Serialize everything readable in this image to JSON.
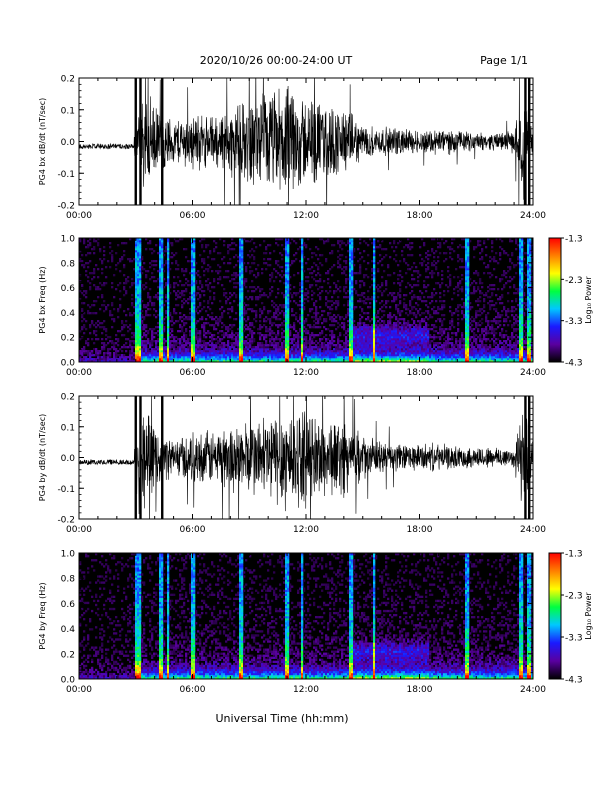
{
  "header": {
    "title": "2020/10/26  00:00-24:00 UT",
    "page": "Page 1/1"
  },
  "footer": {
    "xlabel": "Universal Time (hh:mm)"
  },
  "colorbar": {
    "label": "Log₁₀ Power",
    "ticks": [
      "-1.3",
      "-2.3",
      "-3.3",
      "-4.3"
    ],
    "values": [
      -1.3,
      -2.3,
      -3.3,
      -4.3
    ],
    "range": [
      -4.3,
      -1.3
    ],
    "colormap": [
      "#000000",
      "#5a00a0",
      "#1a1aff",
      "#00c8ff",
      "#00ff40",
      "#ffff00",
      "#ff8000",
      "#ff0000"
    ]
  },
  "chart_data": [
    {
      "type": "line",
      "ylabel": "PG4 bx dB/dt (nT/sec)",
      "xlim": [
        0,
        24
      ],
      "ylim": [
        -0.2,
        0.2
      ],
      "xticks": [
        "00:00",
        "06:00",
        "12:00",
        "18:00",
        "24:00"
      ],
      "yticks": [
        "0.2",
        "0.1",
        "0.0",
        "-0.1",
        "-0.2"
      ],
      "ytick_values": [
        0.2,
        0.1,
        0.0,
        -0.1,
        -0.2
      ],
      "series": [
        {
          "color": "#000000",
          "envelope_hours": [
            0,
            2,
            3,
            3.5,
            4,
            5,
            6,
            7,
            8,
            9,
            10,
            11,
            12,
            13,
            14,
            15,
            16,
            17,
            18,
            19,
            20,
            21,
            22,
            23,
            23.5,
            24
          ],
          "amplitude": [
            0.01,
            0.01,
            0.06,
            0.2,
            0.12,
            0.08,
            0.1,
            0.09,
            0.12,
            0.15,
            0.18,
            0.2,
            0.16,
            0.14,
            0.12,
            0.06,
            0.05,
            0.05,
            0.04,
            0.05,
            0.04,
            0.03,
            0.03,
            0.04,
            0.2,
            0.05
          ]
        }
      ]
    },
    {
      "type": "heatmap",
      "ylabel": "PG4 bx Freq (Hz)",
      "xlim": [
        0,
        24
      ],
      "ylim": [
        0,
        1.0
      ],
      "xticks": [
        "00:00",
        "06:00",
        "12:00",
        "18:00",
        "24:00"
      ],
      "yticks": [
        "1.0",
        "0.8",
        "0.6",
        "0.4",
        "0.2",
        "0.0"
      ],
      "ytick_values": [
        1.0,
        0.8,
        0.6,
        0.4,
        0.2,
        0.0
      ],
      "zlim": [
        -4.3,
        -1.3
      ]
    },
    {
      "type": "line",
      "ylabel": "PG4 by dB/dt (nT/sec)",
      "xlim": [
        0,
        24
      ],
      "ylim": [
        -0.2,
        0.2
      ],
      "xticks": [
        "00:00",
        "06:00",
        "12:00",
        "18:00",
        "24:00"
      ],
      "yticks": [
        "0.2",
        "0.1",
        "0.0",
        "-0.1",
        "-0.2"
      ],
      "ytick_values": [
        0.2,
        0.1,
        0.0,
        -0.1,
        -0.2
      ],
      "series": [
        {
          "color": "#000000",
          "envelope_hours": [
            0,
            2,
            3,
            3.5,
            4,
            5,
            6,
            7,
            8,
            9,
            10,
            11,
            12,
            13,
            14,
            15,
            16,
            17,
            18,
            19,
            20,
            21,
            22,
            23,
            23.5,
            24
          ],
          "amplitude": [
            0.01,
            0.01,
            0.05,
            0.2,
            0.1,
            0.07,
            0.09,
            0.1,
            0.12,
            0.14,
            0.16,
            0.2,
            0.17,
            0.15,
            0.14,
            0.08,
            0.06,
            0.05,
            0.05,
            0.05,
            0.04,
            0.04,
            0.04,
            0.04,
            0.2,
            0.05
          ]
        }
      ]
    },
    {
      "type": "heatmap",
      "ylabel": "PG4 by Freq (Hz)",
      "xlim": [
        0,
        24
      ],
      "ylim": [
        0,
        1.0
      ],
      "xticks": [
        "00:00",
        "06:00",
        "12:00",
        "18:00",
        "24:00"
      ],
      "yticks": [
        "1.0",
        "0.8",
        "0.6",
        "0.4",
        "0.2",
        "0.0"
      ],
      "ytick_values": [
        1.0,
        0.8,
        0.6,
        0.4,
        0.2,
        0.0
      ],
      "zlim": [
        -4.3,
        -1.3
      ]
    }
  ]
}
